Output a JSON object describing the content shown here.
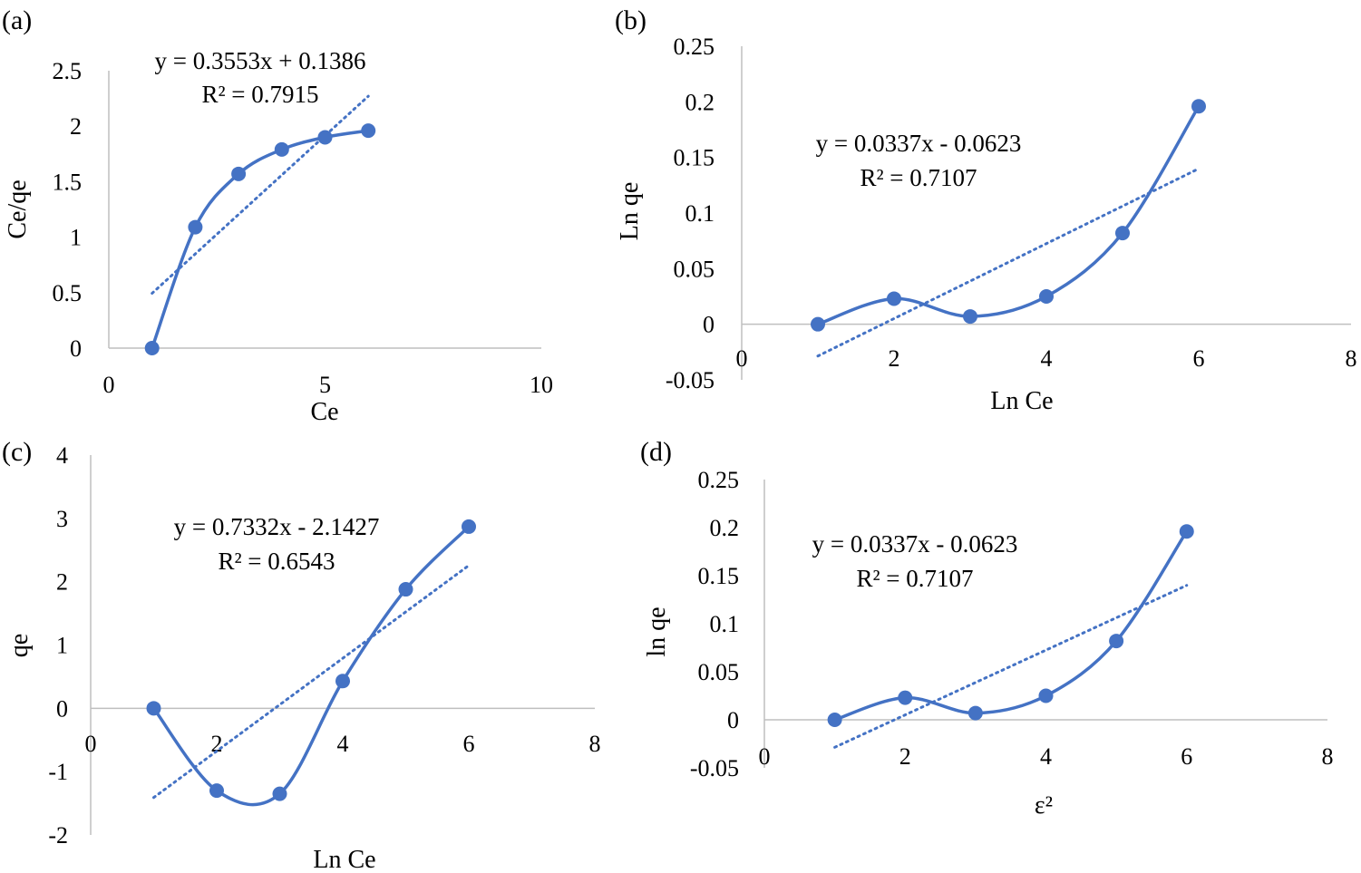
{
  "figure": {
    "description_free": true
  },
  "style": {
    "series_color": "#4472c4",
    "axis_color": "#bfbfbf",
    "text_color": "#000000"
  },
  "chart_data": [
    {
      "panel_label": "(a)",
      "type": "scatter",
      "xlabel": "Ce",
      "ylabel": "Ce/qe",
      "xlim": [
        0,
        10
      ],
      "ylim": [
        0,
        2.5
      ],
      "xticks": [
        "0",
        "5",
        "10"
      ],
      "xtick_values": [
        0,
        5,
        10
      ],
      "yticks": [
        "0",
        "0.5",
        "1",
        "1.5",
        "2",
        "2.5"
      ],
      "ytick_values": [
        0,
        0.5,
        1,
        1.5,
        2,
        2.5
      ],
      "x": [
        1,
        2,
        3,
        4,
        5,
        6
      ],
      "y": [
        0.0,
        1.09,
        1.57,
        1.79,
        1.9,
        1.96
      ],
      "smooth_line": true,
      "trendline": {
        "slope": 0.3553,
        "intercept": 0.1386,
        "x_range": [
          1,
          6
        ]
      },
      "equation": "y = 0.3553x + 0.1386",
      "r2": "R² = 0.7915"
    },
    {
      "panel_label": "(b)",
      "type": "scatter",
      "xlabel": "Ln Ce",
      "ylabel": "Ln qe",
      "xlim": [
        0,
        8
      ],
      "ylim": [
        -0.05,
        0.25
      ],
      "xticks": [
        "0",
        "2",
        "4",
        "6",
        "8"
      ],
      "xtick_values": [
        0,
        2,
        4,
        6,
        8
      ],
      "yticks": [
        "-0.05",
        "0",
        "0.05",
        "0.1",
        "0.15",
        "0.2",
        "0.25"
      ],
      "ytick_values": [
        -0.05,
        0,
        0.05,
        0.1,
        0.15,
        0.2,
        0.25
      ],
      "x": [
        1,
        2,
        3,
        4,
        5,
        6
      ],
      "y": [
        0.0,
        0.023,
        0.007,
        0.025,
        0.082,
        0.196
      ],
      "smooth_line": true,
      "trendline": {
        "slope": 0.0337,
        "intercept": -0.0623,
        "x_range": [
          1,
          6
        ]
      },
      "equation": "y = 0.0337x - 0.0623",
      "r2": "R² = 0.7107"
    },
    {
      "panel_label": "(c)",
      "type": "scatter",
      "xlabel": "Ln Ce",
      "ylabel": "qe",
      "xlim": [
        0,
        8
      ],
      "ylim": [
        -2,
        4
      ],
      "xticks": [
        "0",
        "2",
        "4",
        "6",
        "8"
      ],
      "xtick_values": [
        0,
        2,
        4,
        6,
        8
      ],
      "yticks": [
        "-2",
        "-1",
        "0",
        "1",
        "2",
        "3",
        "4"
      ],
      "ytick_values": [
        -2,
        -1,
        0,
        1,
        2,
        3,
        4
      ],
      "x": [
        1,
        2,
        3,
        4,
        5,
        6
      ],
      "y": [
        0.0,
        -1.3,
        -1.35,
        0.43,
        1.88,
        2.87
      ],
      "smooth_line": true,
      "trendline": {
        "slope": 0.7332,
        "intercept": -2.1427,
        "x_range": [
          1,
          6
        ]
      },
      "equation": "y = 0.7332x - 2.1427",
      "r2": "R² = 0.6543"
    },
    {
      "panel_label": "(d)",
      "type": "scatter",
      "xlabel": "ε²",
      "ylabel": "ln qe",
      "xlim": [
        0,
        8
      ],
      "ylim": [
        -0.05,
        0.25
      ],
      "xticks": [
        "0",
        "2",
        "4",
        "6",
        "8"
      ],
      "xtick_values": [
        0,
        2,
        4,
        6,
        8
      ],
      "yticks": [
        "-0.05",
        "0",
        "0.05",
        "0.1",
        "0.15",
        "0.2",
        "0.25"
      ],
      "ytick_values": [
        -0.05,
        0,
        0.05,
        0.1,
        0.15,
        0.2,
        0.25
      ],
      "x": [
        1,
        2,
        3,
        4,
        5,
        6
      ],
      "y": [
        0.0,
        0.023,
        0.007,
        0.025,
        0.082,
        0.196
      ],
      "smooth_line": true,
      "trendline": {
        "slope": 0.0337,
        "intercept": -0.0623,
        "x_range": [
          1,
          6
        ]
      },
      "equation": "y = 0.0337x - 0.0623",
      "r2": "R² = 0.7107"
    }
  ]
}
